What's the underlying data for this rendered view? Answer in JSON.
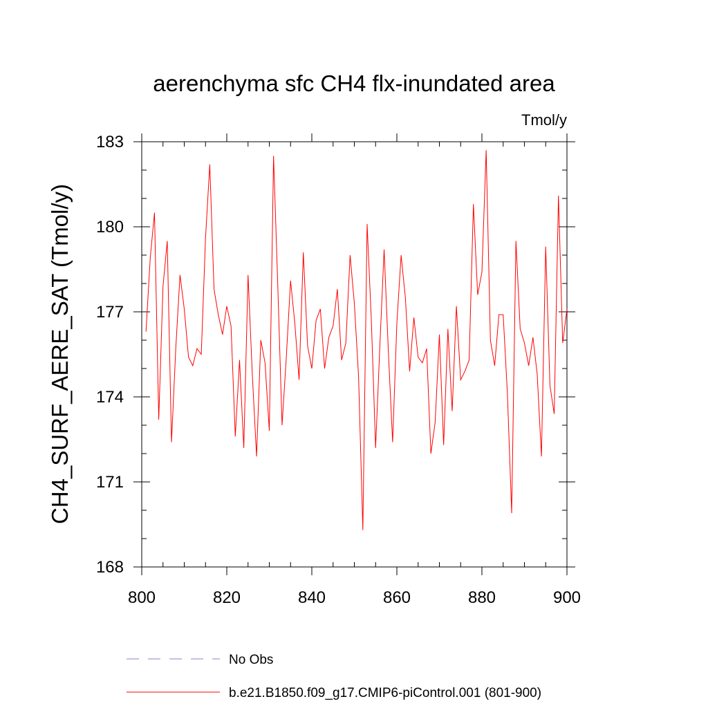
{
  "chart_data": {
    "type": "line",
    "title": "aerenchyma sfc CH4 flx-inundated area",
    "units_label": "Tmol/y",
    "ylabel": "CH4_SURF_AERE_SAT  (Tmol/y)",
    "xlabel": "",
    "xlim": [
      800,
      900
    ],
    "ylim": [
      168,
      183
    ],
    "x_ticks": [
      800,
      820,
      840,
      860,
      880,
      900
    ],
    "x_tick_labels": [
      "800",
      "820",
      "840",
      "860",
      "880",
      "900"
    ],
    "y_ticks": [
      168,
      171,
      174,
      177,
      180,
      183
    ],
    "y_tick_labels": [
      "168",
      "171",
      "174",
      "177",
      "180",
      "183"
    ],
    "grid": false,
    "series": [
      {
        "name": "b.e21.B1850.f09_g17.CMIP6-piControl.001 (801-900)",
        "color": "#ff0000",
        "style": "solid",
        "x": [
          801,
          802,
          803,
          804,
          805,
          806,
          807,
          808,
          809,
          810,
          811,
          812,
          813,
          814,
          815,
          816,
          817,
          818,
          819,
          820,
          821,
          822,
          823,
          824,
          825,
          826,
          827,
          828,
          829,
          830,
          831,
          832,
          833,
          834,
          835,
          836,
          837,
          838,
          839,
          840,
          841,
          842,
          843,
          844,
          845,
          846,
          847,
          848,
          849,
          850,
          851,
          852,
          853,
          854,
          855,
          856,
          857,
          858,
          859,
          860,
          861,
          862,
          863,
          864,
          865,
          866,
          867,
          868,
          869,
          870,
          871,
          872,
          873,
          874,
          875,
          876,
          877,
          878,
          879,
          880,
          881,
          882,
          883,
          884,
          885,
          886,
          887,
          888,
          889,
          890,
          891,
          892,
          893,
          894,
          895,
          896,
          897,
          898,
          899,
          900
        ],
        "values": [
          176.3,
          178.9,
          180.5,
          173.2,
          177.9,
          179.5,
          172.4,
          175.7,
          178.3,
          177.1,
          175.4,
          175.1,
          175.7,
          175.5,
          179.6,
          182.2,
          177.8,
          176.9,
          176.2,
          177.2,
          176.5,
          172.6,
          175.3,
          172.2,
          178.3,
          174.8,
          171.9,
          176.0,
          175.2,
          172.8,
          182.5,
          177.9,
          173.0,
          175.4,
          178.1,
          176.6,
          174.6,
          179.1,
          175.8,
          175.0,
          176.7,
          177.1,
          175.0,
          176.1,
          176.5,
          177.8,
          175.3,
          175.9,
          179.0,
          177.3,
          174.7,
          169.3,
          180.1,
          176.7,
          172.2,
          175.8,
          179.2,
          175.6,
          172.4,
          176.6,
          179.0,
          177.5,
          174.9,
          176.8,
          175.4,
          175.2,
          175.7,
          172.0,
          173.1,
          176.2,
          172.3,
          176.4,
          173.5,
          177.2,
          174.6,
          174.9,
          175.3,
          180.8,
          177.6,
          178.4,
          182.7,
          176.0,
          175.1,
          176.9,
          176.9,
          174.1,
          169.9,
          179.5,
          176.4,
          175.9,
          175.1,
          176.1,
          174.8,
          171.9,
          179.3,
          174.4,
          173.4,
          181.1,
          175.9,
          177.1
        ]
      },
      {
        "name": "No Obs",
        "color": "#8a7fd0",
        "style": "dashed",
        "x": [],
        "values": []
      }
    ]
  }
}
